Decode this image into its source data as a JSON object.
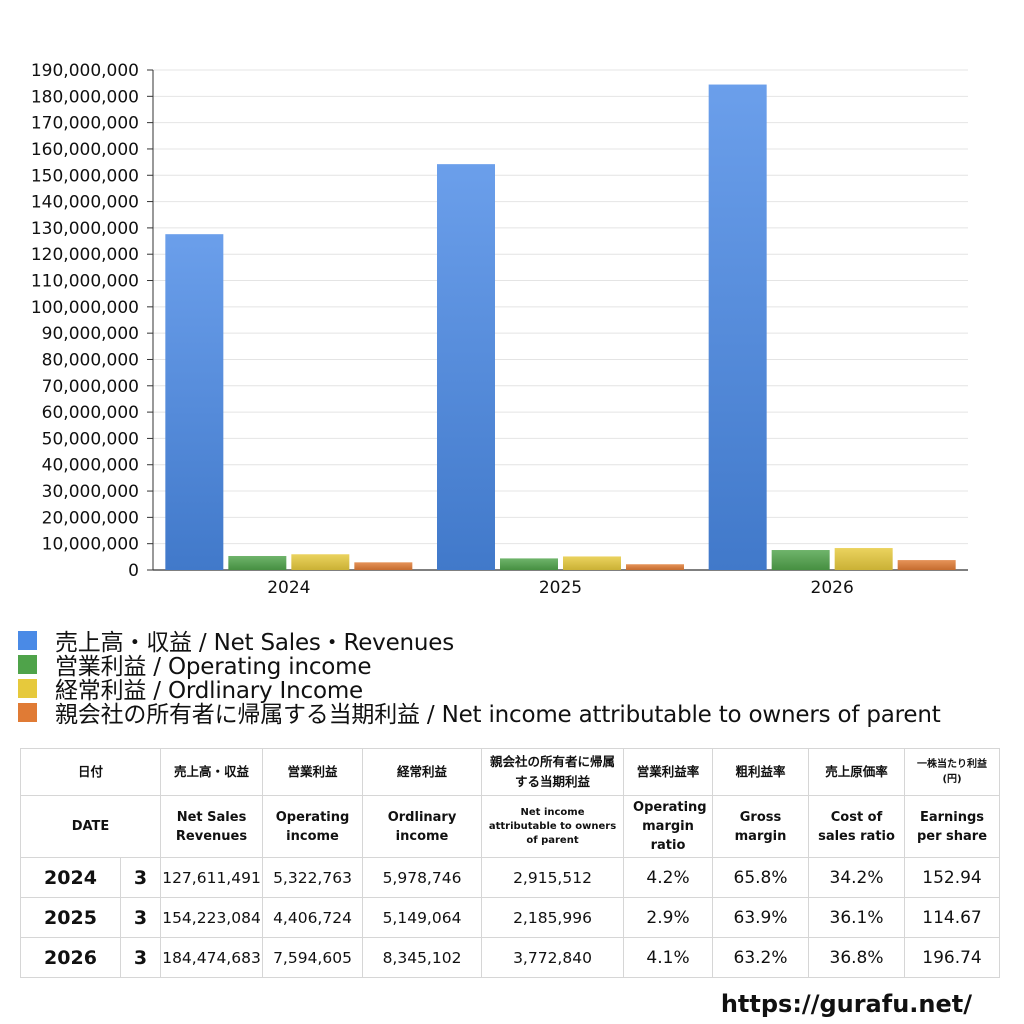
{
  "chart_data": {
    "type": "bar",
    "categories": [
      "2024",
      "2025",
      "2026"
    ],
    "series": [
      {
        "name": "売上高・収益 / Net Sales・Revenues",
        "color": "#4a8ae6",
        "values": [
          127611491,
          154223084,
          184474683
        ]
      },
      {
        "name": "営業利益 / Operating income",
        "color": "#4fa34a",
        "values": [
          5322763,
          4406724,
          7594605
        ]
      },
      {
        "name": "経常利益 / Ordlinary Income",
        "color": "#e6c93c",
        "values": [
          5978746,
          5149064,
          8345102
        ]
      },
      {
        "name": "親会社の所有者に帰属する当期利益 / Net income attributable to owners of parent",
        "color": "#e07b35",
        "values": [
          2915512,
          2185996,
          3772840
        ]
      }
    ],
    "ylim": [
      0,
      190000000
    ],
    "yticks": [
      0,
      10000000,
      20000000,
      30000000,
      40000000,
      50000000,
      60000000,
      70000000,
      80000000,
      90000000,
      100000000,
      110000000,
      120000000,
      130000000,
      140000000,
      150000000,
      160000000,
      170000000,
      180000000,
      190000000
    ],
    "ytick_labels": [
      "0",
      "10,000,000",
      "20,000,000",
      "30,000,000",
      "40,000,000",
      "50,000,000",
      "60,000,000",
      "70,000,000",
      "80,000,000",
      "90,000,000",
      "100,000,000",
      "110,000,000",
      "120,000,000",
      "130,000,000",
      "140,000,000",
      "150,000,000",
      "160,000,000",
      "170,000,000",
      "180,000,000",
      "190,000,000"
    ],
    "grid": true,
    "legend_position": "bottom-left"
  },
  "table": {
    "header_jp": [
      "日付",
      "売上高・収益",
      "営業利益",
      "経常利益",
      "親会社の所有者に帰属する当期利益",
      "営業利益率",
      "粗利益率",
      "売上原価率",
      "一株当たり利益(円)"
    ],
    "header_en": [
      "DATE",
      "Net Sales Revenues",
      "Operating income",
      "Ordlinary income",
      "Net income attributable to owners of parent",
      "Operating margin ratio",
      "Gross margin",
      "Cost of sales ratio",
      "Earnings per share"
    ],
    "rows": [
      {
        "year": "2024",
        "month": "3",
        "sales": "127,611,491",
        "op": "5,322,763",
        "ord": "5,978,746",
        "net": "2,915,512",
        "op_ratio": "4.2%",
        "gross": "65.8%",
        "cost": "34.2%",
        "eps": "152.94"
      },
      {
        "year": "2025",
        "month": "3",
        "sales": "154,223,084",
        "op": "4,406,724",
        "ord": "5,149,064",
        "net": "2,185,996",
        "op_ratio": "2.9%",
        "gross": "63.9%",
        "cost": "36.1%",
        "eps": "114.67"
      },
      {
        "year": "2026",
        "month": "3",
        "sales": "184,474,683",
        "op": "7,594,605",
        "ord": "8,345,102",
        "net": "3,772,840",
        "op_ratio": "4.1%",
        "gross": "63.2%",
        "cost": "36.8%",
        "eps": "196.74"
      }
    ]
  },
  "footer": {
    "url": "https://gurafu.net/"
  }
}
